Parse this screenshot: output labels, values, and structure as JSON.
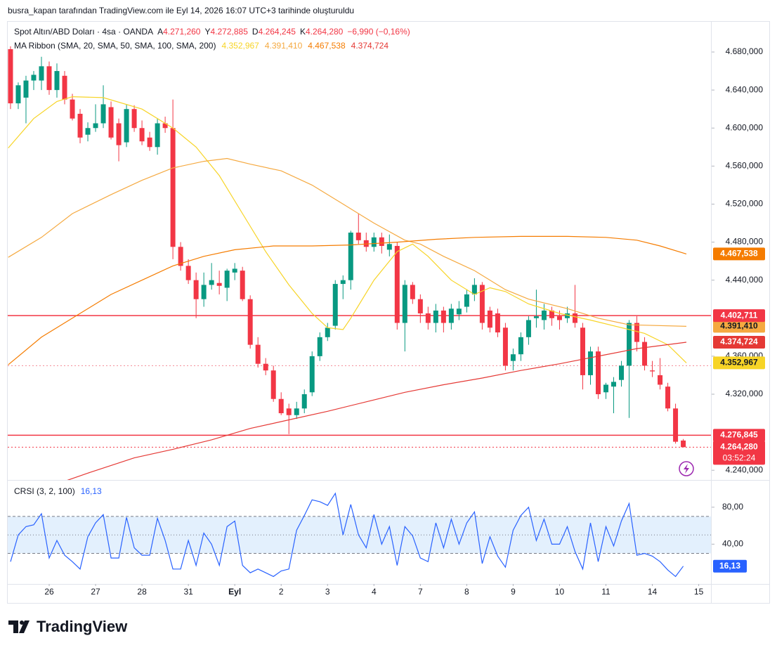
{
  "header": {
    "attribution": "busra_kapan tarafından TradingView.com ile Eyl 14, 2026 16:07 UTC+3 tarihinde oluşturuldu",
    "symbol": "Spot Altın/ABD Doları · 4sa · OANDA",
    "ohlc": [
      {
        "key": "A",
        "text": "4.271,260"
      },
      {
        "key": "Y",
        "text": "4.272,885"
      },
      {
        "key": "D",
        "text": "4.264,245"
      },
      {
        "key": "K",
        "text": "4.264,280"
      }
    ],
    "change": "−6,990 (−0,16%)",
    "ribbon": "MA Ribbon (SMA, 20, SMA, 50, SMA, 100, SMA, 200)",
    "logo": "TradingView"
  },
  "chart_data": [
    {
      "type": "candlestick",
      "up_color": "#089981",
      "down_color": "#f23645",
      "candles": [
        [
          4683,
          4686,
          4620,
          4626
        ],
        [
          4626,
          4648,
          4620,
          4645
        ],
        [
          4632,
          4655,
          4605,
          4650
        ],
        [
          4650,
          4660,
          4640,
          4656
        ],
        [
          4650,
          4675,
          4640,
          4665
        ],
        [
          4665,
          4670,
          4635,
          4640
        ],
        [
          4640,
          4668,
          4632,
          4660
        ],
        [
          4655,
          4660,
          4625,
          4630
        ],
        [
          4630,
          4636,
          4608,
          4610
        ],
        [
          4615,
          4620,
          4584,
          4590
        ],
        [
          4593,
          4606,
          4586,
          4600
        ],
        [
          4600,
          4625,
          4596,
          4605
        ],
        [
          4605,
          4645,
          4600,
          4625
        ],
        [
          4622,
          4628,
          4588,
          4590
        ],
        [
          4605,
          4610,
          4565,
          4582
        ],
        [
          4585,
          4625,
          4580,
          4620
        ],
        [
          4620,
          4624,
          4596,
          4600
        ],
        [
          4600,
          4608,
          4582,
          4586
        ],
        [
          4590,
          4596,
          4576,
          4580
        ],
        [
          4580,
          4610,
          4572,
          4605
        ],
        [
          4605,
          4612,
          4595,
          4600
        ],
        [
          4600,
          4630,
          4462,
          4475
        ],
        [
          4475,
          4480,
          4450,
          4455
        ],
        [
          4455,
          4462,
          4436,
          4440
        ],
        [
          4440,
          4448,
          4400,
          4420
        ],
        [
          4420,
          4448,
          4412,
          4435
        ],
        [
          4435,
          4458,
          4430,
          4440
        ],
        [
          4437,
          4450,
          4425,
          4434
        ],
        [
          4432,
          4452,
          4418,
          4450
        ],
        [
          4448,
          4458,
          4440,
          4452
        ],
        [
          4450,
          4454,
          4418,
          4420
        ],
        [
          4420,
          4424,
          4368,
          4372
        ],
        [
          4372,
          4380,
          4348,
          4352
        ],
        [
          4352,
          4358,
          4340,
          4345
        ],
        [
          4345,
          4350,
          4312,
          4315
        ],
        [
          4315,
          4322,
          4298,
          4300
        ],
        [
          4305,
          4310,
          4278,
          4298
        ],
        [
          4298,
          4312,
          4294,
          4305
        ],
        [
          4305,
          4325,
          4300,
          4320
        ],
        [
          4322,
          4365,
          4318,
          4360
        ],
        [
          4360,
          4385,
          4355,
          4380
        ],
        [
          4380,
          4395,
          4376,
          4390
        ],
        [
          4392,
          4440,
          4388,
          4436
        ],
        [
          4436,
          4445,
          4420,
          4440
        ],
        [
          4440,
          4492,
          4430,
          4490
        ],
        [
          4490,
          4510,
          4478,
          4482
        ],
        [
          4482,
          4490,
          4470,
          4475
        ],
        [
          4475,
          4490,
          4470,
          4485
        ],
        [
          4485,
          4490,
          4468,
          4476
        ],
        [
          4472,
          4488,
          4465,
          4478
        ],
        [
          4476,
          4480,
          4388,
          4395
        ],
        [
          4395,
          4440,
          4365,
          4435
        ],
        [
          4435,
          4438,
          4415,
          4420
        ],
        [
          4420,
          4425,
          4395,
          4405
        ],
        [
          4405,
          4412,
          4388,
          4395
        ],
        [
          4395,
          4415,
          4385,
          4408
        ],
        [
          4408,
          4412,
          4385,
          4395
        ],
        [
          4395,
          4415,
          4388,
          4410
        ],
        [
          4404,
          4418,
          4398,
          4410
        ],
        [
          4412,
          4430,
          4406,
          4425
        ],
        [
          4425,
          4442,
          4418,
          4435
        ],
        [
          4435,
          4438,
          4388,
          4395
        ],
        [
          4408,
          4412,
          4385,
          4390
        ],
        [
          4405,
          4410,
          4380,
          4385
        ],
        [
          4390,
          4395,
          4345,
          4350
        ],
        [
          4355,
          4368,
          4345,
          4362
        ],
        [
          4362,
          4385,
          4355,
          4380
        ],
        [
          4380,
          4402,
          4372,
          4398
        ],
        [
          4400,
          4430,
          4390,
          4402
        ],
        [
          4398,
          4415,
          4388,
          4408
        ],
        [
          4408,
          4412,
          4392,
          4400
        ],
        [
          4402,
          4408,
          4388,
          4398
        ],
        [
          4400,
          4412,
          4395,
          4405
        ],
        [
          4405,
          4435,
          4390,
          4395
        ],
        [
          4390,
          4395,
          4325,
          4340
        ],
        [
          4340,
          4370,
          4330,
          4365
        ],
        [
          4365,
          4370,
          4315,
          4320
        ],
        [
          4322,
          4332,
          4315,
          4330
        ],
        [
          4328,
          4338,
          4300,
          4333
        ],
        [
          4335,
          4355,
          4328,
          4350
        ],
        [
          4350,
          4398,
          4295,
          4395
        ],
        [
          4395,
          4402,
          4365,
          4375
        ],
        [
          4375,
          4380,
          4345,
          4350
        ],
        [
          4345,
          4355,
          4338,
          4344
        ],
        [
          4340,
          4358,
          4325,
          4330
        ],
        [
          4328,
          4332,
          4302,
          4305
        ],
        [
          4305,
          4310,
          4268,
          4270
        ],
        [
          4271.26,
          4272.885,
          4264.245,
          4264.28
        ]
      ],
      "series": [
        {
          "name": "SMA 20",
          "color": "#f7d426",
          "last_label": "4.352,967",
          "x": [
            -0.3,
            3,
            6,
            8,
            12,
            17,
            21,
            24,
            27,
            30,
            33,
            36,
            39,
            41,
            43,
            44,
            47,
            50,
            52,
            54,
            57,
            60,
            62,
            64,
            67,
            71,
            75,
            79,
            82,
            85,
            87.4
          ],
          "values": [
            4579,
            4610,
            4628,
            4633,
            4632,
            4620,
            4600,
            4580,
            4550,
            4510,
            4470,
            4435,
            4405,
            4390,
            4388,
            4400,
            4440,
            4470,
            4478,
            4465,
            4440,
            4425,
            4432,
            4428,
            4415,
            4405,
            4398,
            4390,
            4384,
            4372,
            4352.967
          ]
        },
        {
          "name": "SMA 50",
          "color": "#f5a940",
          "last_label": "4.391,410",
          "x": [
            -0.3,
            4,
            8,
            13,
            17,
            21,
            25,
            28,
            31,
            35,
            39,
            43,
            47,
            51,
            53,
            56,
            60,
            64,
            67,
            72,
            76,
            80,
            87.4
          ],
          "values": [
            4464,
            4485,
            4510,
            4530,
            4545,
            4558,
            4565,
            4568,
            4562,
            4555,
            4540,
            4520,
            4500,
            4482,
            4478,
            4465,
            4450,
            4430,
            4420,
            4410,
            4400,
            4393,
            4391.41
          ]
        },
        {
          "name": "SMA 100",
          "color": "#f57c00",
          "last_label": "4.467,538",
          "x": [
            -0.3,
            4,
            8,
            13,
            17,
            21,
            25,
            29,
            34,
            39,
            44,
            50,
            55,
            60,
            66,
            72,
            77,
            81,
            84,
            87.4
          ],
          "values": [
            4351,
            4380,
            4400,
            4425,
            4440,
            4455,
            4465,
            4472,
            4476,
            4476,
            4477,
            4480,
            4483,
            4485,
            4486,
            4486,
            4485,
            4482,
            4476,
            4467.538
          ]
        },
        {
          "name": "SMA 200",
          "color": "#e53935",
          "last_label": "4.374,724",
          "x": [
            4,
            10,
            16,
            21,
            26,
            31,
            36,
            41,
            46,
            51,
            56,
            61,
            66,
            71,
            76,
            81,
            87.4
          ],
          "values": [
            4220,
            4237,
            4253,
            4262,
            4272,
            4284,
            4293,
            4302,
            4312,
            4322,
            4330,
            4337,
            4345,
            4352,
            4360,
            4368,
            4374.724
          ]
        }
      ],
      "hlines": [
        {
          "value": 4402.711,
          "label": "4.402,711",
          "color": "#f23645",
          "style": "solid"
        },
        {
          "value": 4276.845,
          "label": "4.276,845",
          "color": "#f23645",
          "style": "solid"
        },
        {
          "value": 4350,
          "color": "#f28b95",
          "style": "dotted"
        },
        {
          "value": 4264.28,
          "label": "4.264,280",
          "color": "#f23645",
          "style": "dotted",
          "countdown": "03:52:24"
        }
      ],
      "xlim": [
        -0.36,
        90.4
      ],
      "ylim": [
        4229.8,
        4711.8
      ],
      "yticks": [
        {
          "value": 4680,
          "label": "4.680,000"
        },
        {
          "value": 4640,
          "label": "4.640,000"
        },
        {
          "value": 4600,
          "label": "4.600,000"
        },
        {
          "value": 4560,
          "label": "4.560,000"
        },
        {
          "value": 4520,
          "label": "4.520,000"
        },
        {
          "value": 4480,
          "label": "4.480,000"
        },
        {
          "value": 4440,
          "label": "4.440,000"
        },
        {
          "value": 4360,
          "label": "4.360,000"
        },
        {
          "value": 4320,
          "label": "4.320,000"
        },
        {
          "value": 4240,
          "label": "4.240,000"
        }
      ],
      "xticks": [
        {
          "value": 5,
          "label": "26"
        },
        {
          "value": 11,
          "label": "27"
        },
        {
          "value": 17,
          "label": "28"
        },
        {
          "value": 23,
          "label": "31"
        },
        {
          "value": 29,
          "label": "Eyl"
        },
        {
          "value": 35,
          "label": "2"
        },
        {
          "value": 41,
          "label": "3"
        },
        {
          "value": 47,
          "label": "4"
        },
        {
          "value": 53,
          "label": "7"
        },
        {
          "value": 59,
          "label": "8"
        },
        {
          "value": 65,
          "label": "9"
        },
        {
          "value": 71,
          "label": "10"
        },
        {
          "value": 77,
          "label": "11"
        },
        {
          "value": 83,
          "label": "14"
        },
        {
          "value": 89,
          "label": "15"
        }
      ]
    },
    {
      "type": "line",
      "title": "CRSI (3, 2, 100)",
      "color": "#2962ff",
      "values": [
        21,
        50,
        59,
        61,
        73,
        25,
        44,
        28,
        21,
        13,
        48,
        63,
        72,
        25,
        25,
        69,
        36,
        28,
        28,
        68,
        44,
        13,
        13,
        44,
        17,
        52,
        40,
        17,
        59,
        65,
        17,
        9,
        13,
        9,
        5,
        11,
        13,
        55,
        71,
        88,
        86,
        82,
        95,
        50,
        83,
        50,
        36,
        72,
        40,
        59,
        17,
        59,
        49,
        25,
        21,
        63,
        36,
        67,
        40,
        63,
        75,
        19,
        48,
        27,
        15,
        55,
        71,
        80,
        44,
        67,
        40,
        40,
        59,
        32,
        13,
        63,
        21,
        59,
        38,
        65,
        84,
        28,
        30,
        27,
        21,
        12,
        5,
        16.13
      ],
      "last_label": "16,13",
      "bands": [
        30,
        50,
        70
      ],
      "band_color": "#e3f0fd",
      "ylim": [
        -3.1,
        108
      ],
      "yticks": [
        {
          "value": 80,
          "label": "80,00"
        },
        {
          "value": 40,
          "label": "40,00"
        }
      ]
    }
  ]
}
